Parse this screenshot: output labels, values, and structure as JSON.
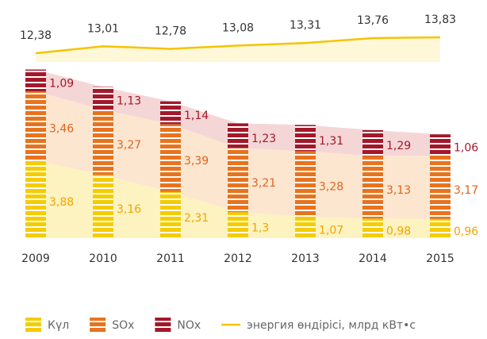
{
  "chart_data": {
    "type": "stacked_bar_line",
    "categories": [
      "2009",
      "2010",
      "2011",
      "2012",
      "2013",
      "2014",
      "2015"
    ],
    "series": [
      {
        "name": "Күл",
        "color": "#f5cc00",
        "label_color": "#f0a500",
        "values": [
          3.88,
          3.16,
          2.31,
          1.3,
          1.07,
          0.98,
          0.96
        ],
        "value_labels": [
          "3,88",
          "3,16",
          "2,31",
          "1,3",
          "1,07",
          "0,98",
          "0,96"
        ]
      },
      {
        "name": "SOx",
        "color": "#e8731e",
        "label_color": "#e0641e",
        "values": [
          3.46,
          3.27,
          3.39,
          3.21,
          3.28,
          3.13,
          3.17
        ],
        "value_labels": [
          "3,46",
          "3,27",
          "3,39",
          "3,21",
          "3,28",
          "3,13",
          "3,17"
        ]
      },
      {
        "name": "NOx",
        "color": "#a3182a",
        "label_color": "#a3182a",
        "values": [
          1.09,
          1.13,
          1.14,
          1.23,
          1.31,
          1.29,
          1.06
        ],
        "value_labels": [
          "1,09",
          "1,13",
          "1,14",
          "1,23",
          "1,31",
          "1,29",
          "1,06"
        ]
      }
    ],
    "line": {
      "name": "энергия өндірісі, млрд кВт•с",
      "color": "#f5c400",
      "values": [
        12.38,
        13.01,
        12.78,
        13.08,
        13.31,
        13.76,
        13.83
      ],
      "value_labels": [
        "12,38",
        "13,01",
        "12,78",
        "13,08",
        "13,31",
        "13,76",
        "13,83"
      ]
    }
  }
}
